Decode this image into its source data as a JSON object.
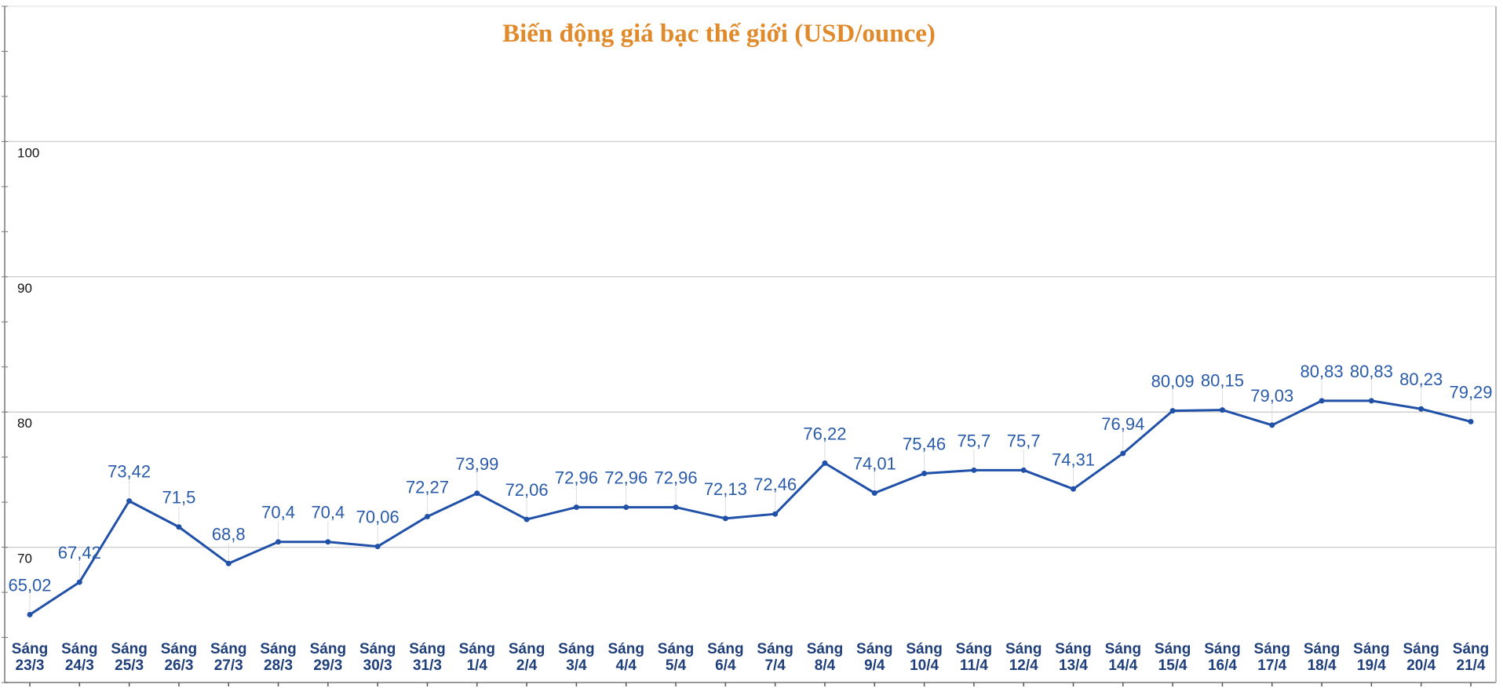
{
  "chart_data": {
    "type": "line",
    "title": "Biến động giá bạc thế giới (USD/ounce)",
    "xlabel": "",
    "ylabel": "",
    "ylim": [
      60,
      110
    ],
    "yticks": [
      70,
      80,
      90,
      100
    ],
    "grid": true,
    "line_color": "#2050a8",
    "title_color": "#E08A2B",
    "label_color": "#2a5ba8",
    "categories": [
      [
        "Sáng",
        "23/3"
      ],
      [
        "Sáng",
        "24/3"
      ],
      [
        "Sáng",
        "25/3"
      ],
      [
        "Sáng",
        "26/3"
      ],
      [
        "Sáng",
        "27/3"
      ],
      [
        "Sáng",
        "28/3"
      ],
      [
        "Sáng",
        "29/3"
      ],
      [
        "Sáng",
        "30/3"
      ],
      [
        "Sáng",
        "31/3"
      ],
      [
        "Sáng",
        "1/4"
      ],
      [
        "Sáng",
        "2/4"
      ],
      [
        "Sáng",
        "3/4"
      ],
      [
        "Sáng",
        "4/4"
      ],
      [
        "Sáng",
        "5/4"
      ],
      [
        "Sáng",
        "6/4"
      ],
      [
        "Sáng",
        "7/4"
      ],
      [
        "Sáng",
        "8/4"
      ],
      [
        "Sáng",
        "9/4"
      ],
      [
        "Sáng",
        "10/4"
      ],
      [
        "Sáng",
        "11/4"
      ],
      [
        "Sáng",
        "12/4"
      ],
      [
        "Sáng",
        "13/4"
      ],
      [
        "Sáng",
        "14/4"
      ],
      [
        "Sáng",
        "15/4"
      ],
      [
        "Sáng",
        "16/4"
      ],
      [
        "Sáng",
        "17/4"
      ],
      [
        "Sáng",
        "18/4"
      ],
      [
        "Sáng",
        "19/4"
      ],
      [
        "Sáng",
        "20/4"
      ],
      [
        "Sáng",
        "21/4"
      ]
    ],
    "values": [
      65.02,
      67.42,
      73.42,
      71.5,
      68.8,
      70.4,
      70.4,
      70.06,
      72.27,
      73.99,
      72.06,
      72.96,
      72.96,
      72.96,
      72.13,
      72.46,
      76.22,
      74.01,
      75.46,
      75.7,
      75.7,
      74.31,
      76.94,
      80.09,
      80.15,
      79.03,
      80.83,
      80.83,
      80.23,
      79.29
    ],
    "data_labels": [
      "65,02",
      "67,42",
      "73,42",
      "71,5",
      "68,8",
      "70,4",
      "70,4",
      "70,06",
      "72,27",
      "73,99",
      "72,06",
      "72,96",
      "72,96",
      "72,96",
      "72,13",
      "72,46",
      "76,22",
      "74,01",
      "75,46",
      "75,7",
      "75,7",
      "74,31",
      "76,94",
      "80,09",
      "80,15",
      "79,03",
      "80,83",
      "80,83",
      "80,23",
      "79,29"
    ]
  }
}
